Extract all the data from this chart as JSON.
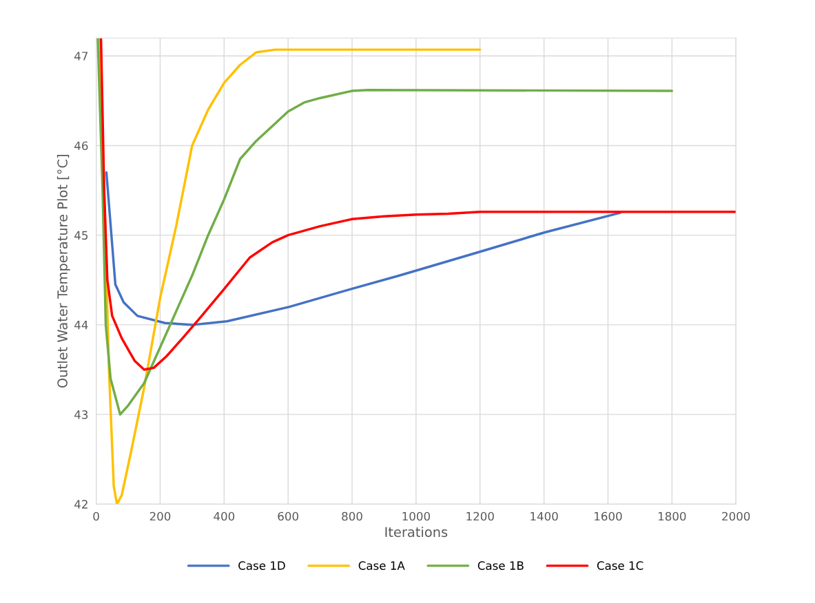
{
  "chart_data": {
    "type": "line",
    "xlabel": "Iterations",
    "ylabel": "Outlet Water Temperature Plot [°C]",
    "xlim": [
      0,
      2000
    ],
    "xticks": [
      0,
      200,
      400,
      600,
      800,
      1000,
      1200,
      1400,
      1600,
      1800,
      2000
    ],
    "ylim": [
      42,
      47.2
    ],
    "yticks": [
      42,
      43,
      44,
      45,
      46,
      47
    ],
    "grid": true,
    "legend": "bottom",
    "marker": "none",
    "line_style": "solid",
    "series": [
      {
        "name": "Case 1D",
        "color": "#4472c4",
        "x": [
          32,
          60,
          86,
          129,
          215,
          302,
          409,
          603,
          797,
          948,
          1185,
          1401,
          1638
        ],
        "values": [
          45.7,
          44.45,
          44.25,
          44.1,
          44.02,
          44.0,
          44.04,
          44.2,
          44.4,
          44.55,
          44.8,
          45.03,
          45.25
        ]
      },
      {
        "name": "Case 1A",
        "color": "#ffc000",
        "x": [
          10,
          25,
          40,
          55,
          65,
          80,
          110,
          150,
          200,
          250,
          300,
          350,
          400,
          450,
          500,
          560,
          1200
        ],
        "values": [
          47.2,
          45.5,
          43.5,
          42.2,
          42.0,
          42.1,
          42.6,
          43.3,
          44.3,
          45.1,
          46.0,
          46.4,
          46.7,
          46.9,
          47.04,
          47.07,
          47.07
        ]
      },
      {
        "name": "Case 1B",
        "color": "#70ad47",
        "x": [
          5,
          20,
          30,
          45,
          75,
          100,
          150,
          200,
          250,
          300,
          350,
          400,
          450,
          500,
          600,
          650,
          700,
          800,
          850,
          1800
        ],
        "values": [
          47.2,
          45.5,
          44.0,
          43.4,
          43.0,
          43.1,
          43.35,
          43.75,
          44.15,
          44.55,
          45.0,
          45.4,
          45.85,
          46.05,
          46.38,
          46.48,
          46.53,
          46.61,
          46.62,
          46.61
        ]
      },
      {
        "name": "Case 1C",
        "color": "#ff0000",
        "x": [
          15,
          25,
          35,
          50,
          80,
          120,
          150,
          180,
          220,
          270,
          330,
          400,
          480,
          550,
          600,
          700,
          800,
          900,
          1000,
          1100,
          1200,
          2000
        ],
        "values": [
          47.2,
          45.5,
          44.5,
          44.1,
          43.85,
          43.6,
          43.5,
          43.52,
          43.65,
          43.85,
          44.1,
          44.4,
          44.75,
          44.92,
          45.0,
          45.1,
          45.18,
          45.21,
          45.23,
          45.24,
          45.26,
          45.26
        ]
      }
    ]
  }
}
